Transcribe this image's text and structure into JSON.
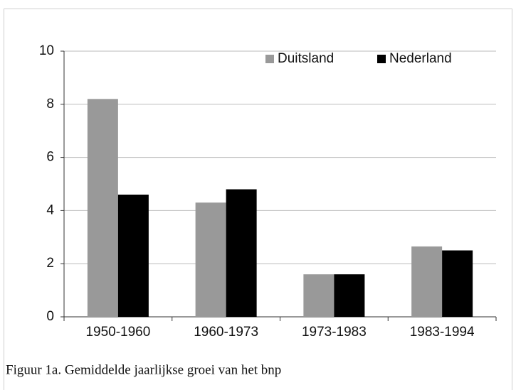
{
  "chart_data": {
    "type": "bar",
    "title": "Figuur 1a. Gemiddelde jaarlijkse groei van het bnp",
    "categories": [
      "1950-1960",
      "1960-1973",
      "1973-1983",
      "1983-1994"
    ],
    "series": [
      {
        "name": "Duitsland",
        "color": "#999999",
        "values": [
          8.2,
          4.3,
          1.6,
          2.65
        ]
      },
      {
        "name": "Nederland",
        "color": "#000000",
        "values": [
          4.6,
          4.8,
          1.6,
          2.5
        ]
      }
    ],
    "ylim": [
      0,
      10
    ],
    "yticks": [
      0,
      2,
      4,
      6,
      8,
      10
    ],
    "grid": true,
    "legend": "top-right"
  }
}
